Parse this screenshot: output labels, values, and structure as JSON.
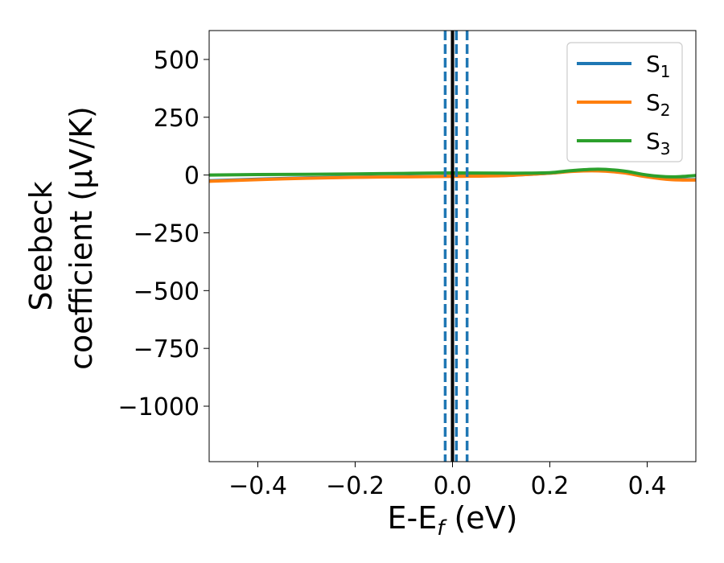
{
  "chart_data": {
    "type": "line",
    "xlabel": "E-E",
    "xlabel_sub": "f",
    "xlabel_unit": " (eV)",
    "ylabel_line1": "Seebeck",
    "ylabel_line2": "coefficient  (μV/K)",
    "xlim": [
      -0.5,
      0.5
    ],
    "ylim": [
      -1240,
      625
    ],
    "xticks": [
      -0.4,
      -0.2,
      0.0,
      0.2,
      0.4
    ],
    "xtick_labels": [
      "−0.4",
      "−0.2",
      "0.0",
      "0.2",
      "0.4"
    ],
    "yticks": [
      500,
      250,
      0,
      -250,
      -500,
      -750,
      -1000
    ],
    "ytick_labels": [
      "500",
      "250",
      "0",
      "−250",
      "−500",
      "−750",
      "−1000"
    ],
    "grid": false,
    "legend_position": "top-right",
    "series": [
      {
        "name": "S",
        "sub": "1",
        "color": "#1f77b4",
        "x": [
          -0.5,
          -0.4,
          -0.3,
          -0.2,
          -0.1,
          0.0,
          0.1,
          0.15,
          0.2,
          0.25,
          0.3,
          0.35,
          0.4,
          0.45,
          0.5
        ],
        "y": [
          -25,
          -18,
          -12,
          -9,
          -7,
          -5,
          -2,
          2,
          8,
          18,
          20,
          12,
          -5,
          -18,
          -20
        ]
      },
      {
        "name": "S",
        "sub": "2",
        "color": "#ff7f0e",
        "x": [
          -0.5,
          -0.4,
          -0.3,
          -0.2,
          -0.1,
          0.0,
          0.1,
          0.15,
          0.2,
          0.25,
          0.3,
          0.35,
          0.4,
          0.45,
          0.5
        ],
        "y": [
          -27,
          -20,
          -14,
          -10,
          -8,
          -6,
          -3,
          2,
          8,
          16,
          18,
          10,
          -8,
          -20,
          -22
        ]
      },
      {
        "name": "S",
        "sub": "3",
        "color": "#2ca02c",
        "x": [
          -0.5,
          -0.4,
          -0.3,
          -0.2,
          -0.1,
          0.0,
          0.1,
          0.15,
          0.2,
          0.25,
          0.3,
          0.35,
          0.4,
          0.45,
          0.5
        ],
        "y": [
          0,
          2,
          3,
          5,
          7,
          9,
          8,
          8,
          10,
          20,
          25,
          18,
          0,
          -8,
          -2
        ]
      }
    ],
    "vlines": [
      {
        "x": -0.015,
        "style": "dashed",
        "color": "#1f77b4"
      },
      {
        "x": 0.0,
        "style": "solid",
        "color": "#000000"
      },
      {
        "x": 0.008,
        "style": "dashed",
        "color": "#1f77b4"
      },
      {
        "x": 0.03,
        "style": "dashed",
        "color": "#1f77b4"
      }
    ]
  }
}
